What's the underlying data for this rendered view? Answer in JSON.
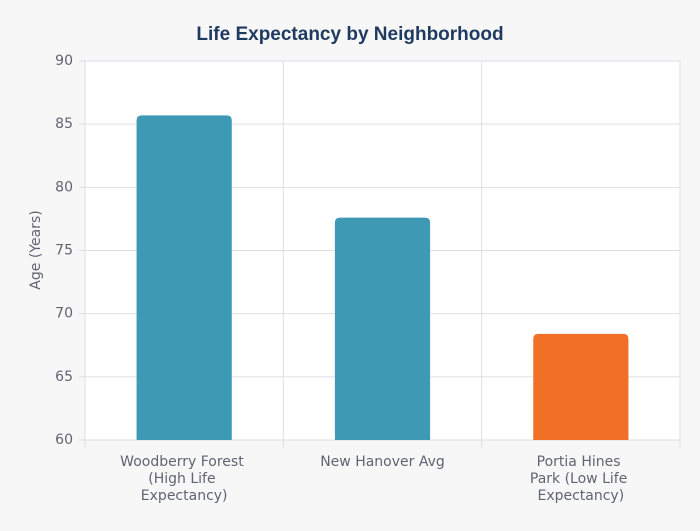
{
  "chart_data": {
    "type": "bar",
    "title": "Life Expectancy by Neighborhood",
    "y_label": "Age (Years)",
    "categories": [
      "Woodberry Forest (High Life Expectancy)",
      "New Hanover Avg",
      "Portia Hines Park (Low Life Expectancy)"
    ],
    "values": [
      85.7,
      77.6,
      68.4
    ],
    "colors": [
      "#3e99b4",
      "#3e99b4",
      "#f07126"
    ],
    "ylim": [
      60,
      90
    ],
    "yticks": [
      60,
      65,
      70,
      75,
      80,
      85,
      90
    ],
    "grid": true
  }
}
